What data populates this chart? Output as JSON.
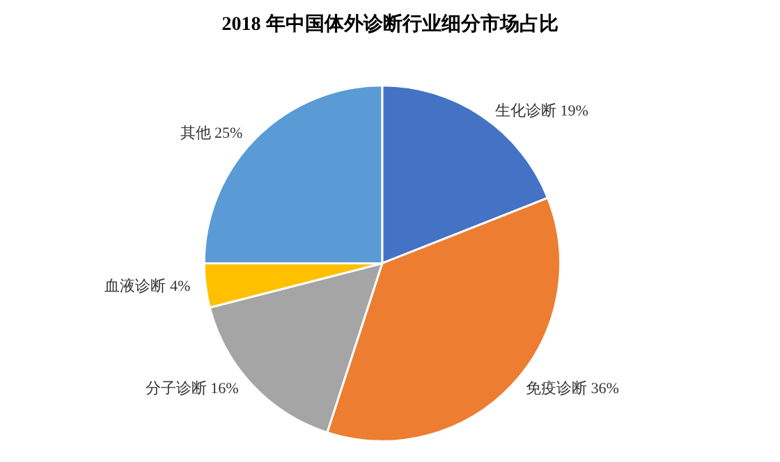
{
  "chart_data": {
    "type": "pie",
    "title": "2018 年中国体外诊断行业细分市场占比",
    "categories": [
      "生化诊断",
      "免疫诊断",
      "分子诊断",
      "血液诊断",
      "其他"
    ],
    "values": [
      19,
      36,
      16,
      4,
      25
    ],
    "value_labels": [
      "19%",
      "36%",
      "16%",
      "4%",
      "25%"
    ],
    "colors": [
      "#4472c4",
      "#ed7d31",
      "#a5a5a5",
      "#ffc000",
      "#5b9bd5"
    ],
    "legend": false
  }
}
